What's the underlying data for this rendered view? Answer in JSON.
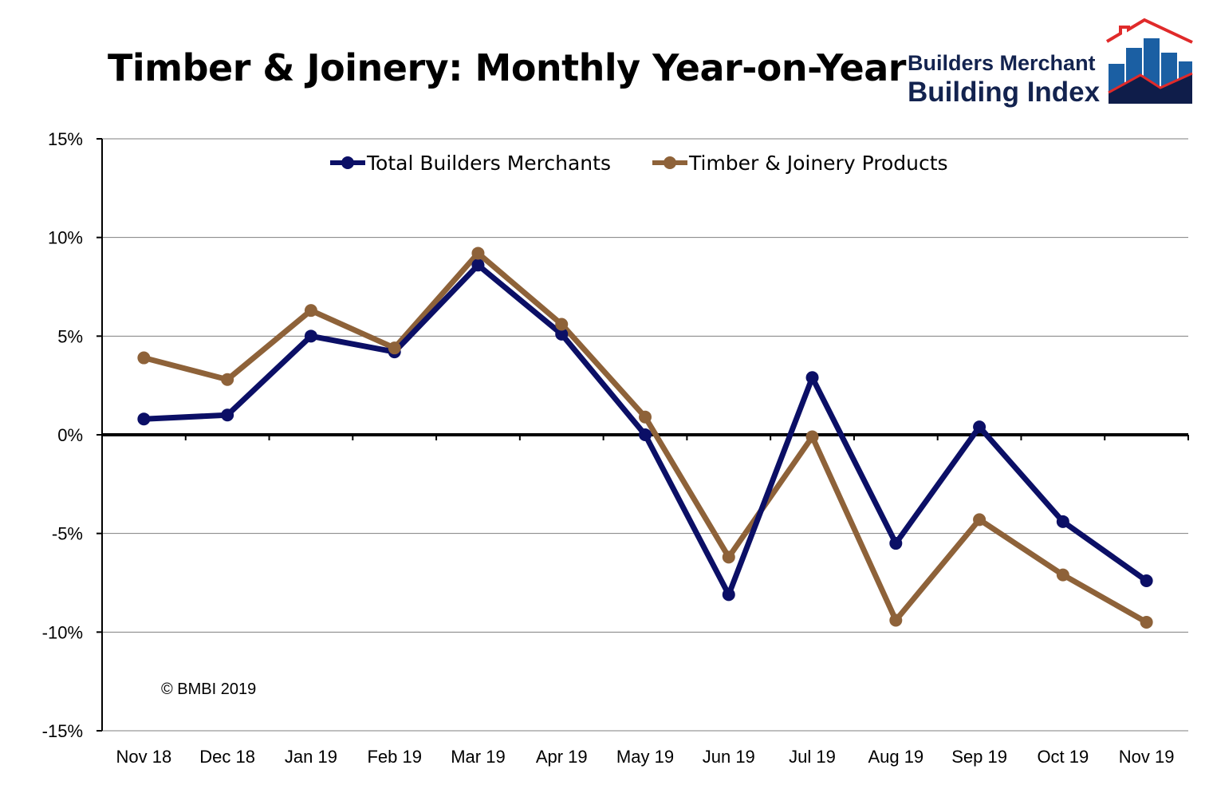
{
  "chart_data": {
    "type": "line",
    "title": "Timber & Joinery: Monthly Year-on-Year",
    "categories": [
      "Nov 18",
      "Dec 18",
      "Jan 19",
      "Feb 19",
      "Mar 19",
      "Apr 19",
      "May 19",
      "Jun 19",
      "Jul 19",
      "Aug 19",
      "Sep 19",
      "Oct 19",
      "Nov 19"
    ],
    "series": [
      {
        "name": "Total Builders Merchants",
        "color": "#0b0f66",
        "values": [
          0.8,
          1.0,
          5.0,
          4.2,
          8.6,
          5.1,
          0.0,
          -8.1,
          2.9,
          -5.5,
          0.4,
          -4.4,
          -7.4
        ]
      },
      {
        "name": "Timber & Joinery Products",
        "color": "#8e6239",
        "values": [
          3.9,
          2.8,
          6.3,
          4.4,
          9.2,
          5.6,
          0.9,
          -6.2,
          -0.1,
          -9.4,
          -4.3,
          -7.1,
          -9.5
        ]
      }
    ],
    "ylim": [
      -15,
      15
    ],
    "yticks": [
      "-15%",
      "-10%",
      "-5%",
      "0%",
      "5%",
      "10%",
      "15%"
    ],
    "ytick_values": [
      -15,
      -10,
      -5,
      0,
      5,
      10,
      15
    ],
    "grid": true,
    "legend": "top-center",
    "annotation": "© BMBI 2019"
  },
  "logo": {
    "line1": "Builders Merchant",
    "line2": "Building Index"
  }
}
